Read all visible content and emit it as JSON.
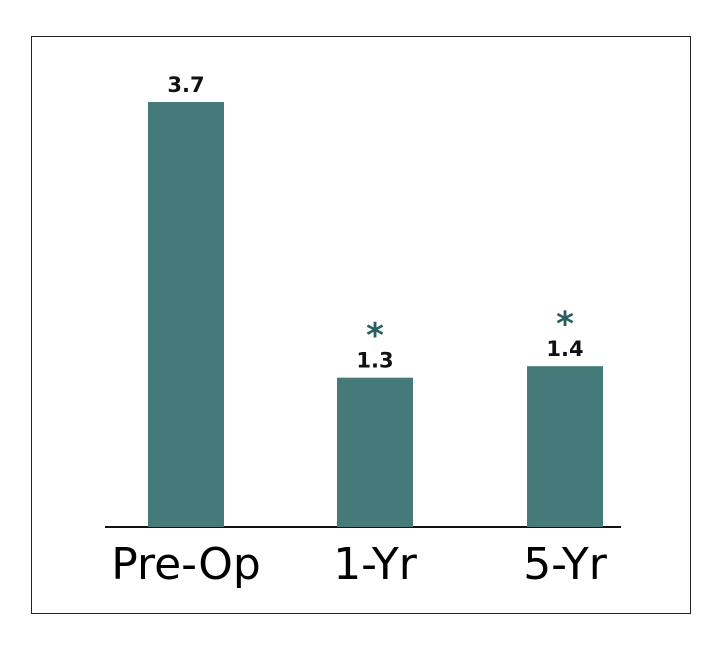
{
  "chart_data": {
    "type": "bar",
    "categories": [
      "Pre-Op",
      "1-Yr",
      "5-Yr"
    ],
    "values": [
      3.7,
      1.3,
      1.4
    ],
    "annotations": [
      null,
      "*",
      "*"
    ],
    "color": "#467a7a",
    "annotation_color": "#2a5f5f"
  }
}
